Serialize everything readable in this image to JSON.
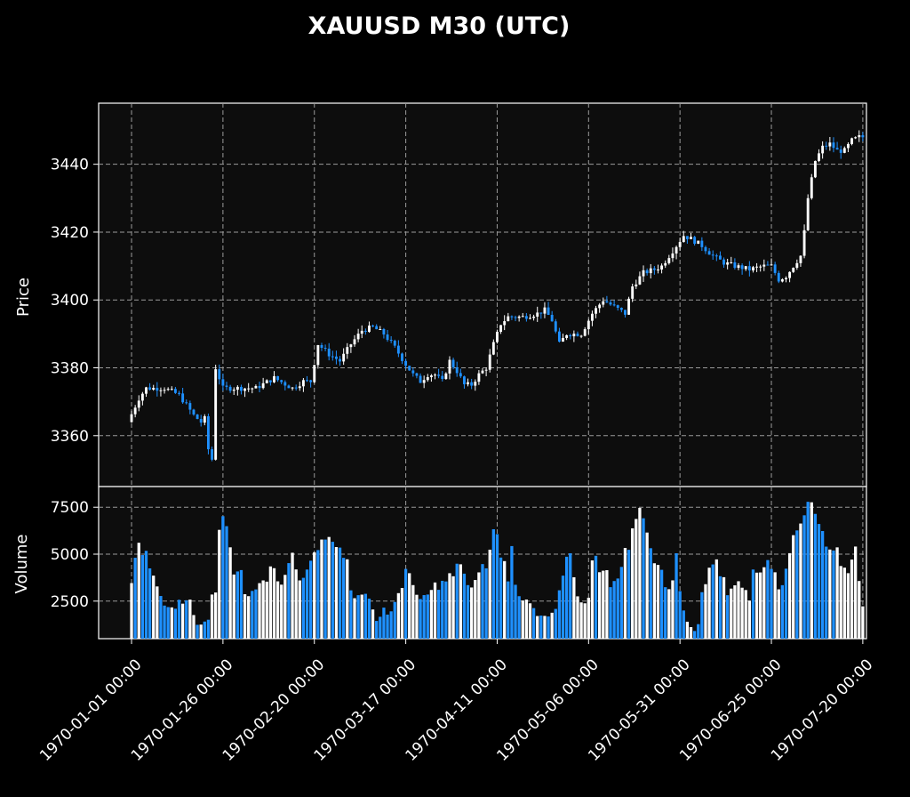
{
  "chart_data": {
    "type": "candlestick",
    "title": "XAUUSD M30 (UTC)",
    "colors": {
      "background": "#000000",
      "panel": "#0d0d0d",
      "up": "#ffffff",
      "down": "#1e90ff",
      "grid": "#9a9a9a",
      "text": "#ffffff"
    },
    "grid": true,
    "price_panel": {
      "ylabel": "Price",
      "ylim": [
        3345,
        3458
      ],
      "yticks": [
        3360,
        3380,
        3400,
        3420,
        3440
      ],
      "ytick_labels": [
        "3360",
        "3380",
        "3400",
        "3420",
        "3440"
      ]
    },
    "volume_panel": {
      "ylabel": "Volume",
      "ylim": [
        500,
        8600
      ],
      "yticks": [
        2500,
        5000,
        7500
      ],
      "ytick_labels": [
        "2500",
        "5000",
        "7500"
      ]
    },
    "x": {
      "index_range": [
        -9,
        201
      ],
      "ticks": [
        0,
        25,
        50,
        75,
        100,
        125,
        150,
        175,
        200
      ],
      "tick_labels": [
        "1970-01-01 00:00",
        "1970-01-26 00:00",
        "1970-02-20 00:00",
        "1970-03-17 00:00",
        "1970-04-11 00:00",
        "1970-05-06 00:00",
        "1970-05-31 00:00",
        "1970-06-25 00:00",
        "1970-07-20 00:00"
      ]
    },
    "price_anchors": [
      [
        0,
        3364
      ],
      [
        3,
        3371
      ],
      [
        5,
        3374
      ],
      [
        10,
        3374
      ],
      [
        14,
        3372
      ],
      [
        18,
        3366
      ],
      [
        21,
        3365
      ],
      [
        18,
        3366
      ],
      [
        19,
        3365
      ],
      [
        20,
        3364
      ],
      [
        21,
        3363
      ],
      [
        22,
        3356
      ],
      [
        23,
        3353
      ],
      [
        24,
        3380
      ],
      [
        26,
        3374
      ],
      [
        30,
        3374
      ],
      [
        35,
        3374
      ],
      [
        40,
        3377
      ],
      [
        45,
        3374
      ],
      [
        48,
        3376
      ],
      [
        50,
        3376
      ],
      [
        52,
        3387
      ],
      [
        55,
        3384
      ],
      [
        58,
        3382
      ],
      [
        61,
        3387
      ],
      [
        64,
        3391
      ],
      [
        67,
        3392
      ],
      [
        70,
        3390
      ],
      [
        73,
        3386
      ],
      [
        76,
        3381
      ],
      [
        78,
        3378
      ],
      [
        80,
        3376
      ],
      [
        82,
        3378
      ],
      [
        84,
        3378
      ],
      [
        86,
        3376
      ],
      [
        88,
        3382
      ],
      [
        90,
        3379
      ],
      [
        92,
        3375
      ],
      [
        94,
        3375
      ],
      [
        96,
        3378
      ],
      [
        98,
        3380
      ],
      [
        100,
        3387
      ],
      [
        102,
        3393
      ],
      [
        104,
        3395
      ],
      [
        108,
        3395
      ],
      [
        112,
        3396
      ],
      [
        114,
        3397
      ],
      [
        116,
        3394
      ],
      [
        118,
        3387
      ],
      [
        120,
        3390
      ],
      [
        124,
        3390
      ],
      [
        127,
        3396
      ],
      [
        130,
        3400
      ],
      [
        133,
        3398
      ],
      [
        136,
        3396
      ],
      [
        138,
        3404
      ],
      [
        141,
        3408
      ],
      [
        144,
        3409
      ],
      [
        146,
        3410
      ],
      [
        150,
        3416
      ],
      [
        152,
        3419
      ],
      [
        154,
        3418
      ],
      [
        157,
        3416
      ],
      [
        160,
        3413
      ],
      [
        163,
        3411
      ],
      [
        166,
        3410
      ],
      [
        170,
        3409
      ],
      [
        174,
        3410
      ],
      [
        176,
        3410
      ],
      [
        178,
        3406
      ],
      [
        180,
        3407
      ],
      [
        182,
        3410
      ],
      [
        184,
        3413
      ],
      [
        185,
        3420
      ],
      [
        186,
        3430
      ],
      [
        188,
        3441
      ],
      [
        190,
        3445
      ],
      [
        192,
        3446
      ],
      [
        194,
        3444
      ],
      [
        196,
        3444
      ],
      [
        198,
        3447
      ],
      [
        200,
        3448
      ]
    ],
    "volume_anchors": [
      [
        0,
        3700
      ],
      [
        1,
        5300
      ],
      [
        3,
        5400
      ],
      [
        4,
        4700
      ],
      [
        5,
        3700
      ],
      [
        6,
        3300
      ],
      [
        7,
        2800
      ],
      [
        8,
        2300
      ],
      [
        9,
        2300
      ],
      [
        10,
        2200
      ],
      [
        11,
        2400
      ],
      [
        13,
        2400
      ],
      [
        14,
        2800
      ],
      [
        15,
        1500
      ],
      [
        16,
        1200
      ],
      [
        17,
        1500
      ],
      [
        18,
        1100
      ],
      [
        19,
        3000
      ],
      [
        20,
        3000
      ],
      [
        21,
        7000
      ],
      [
        22,
        6700
      ],
      [
        23,
        5800
      ],
      [
        24,
        3600
      ],
      [
        25,
        3800
      ],
      [
        26,
        4000
      ],
      [
        27,
        2700
      ],
      [
        29,
        3100
      ],
      [
        30,
        3600
      ],
      [
        32,
        3400
      ],
      [
        33,
        4800
      ],
      [
        35,
        3300
      ],
      [
        37,
        4400
      ],
      [
        38,
        4900
      ],
      [
        40,
        3500
      ],
      [
        42,
        4700
      ],
      [
        44,
        4800
      ],
      [
        46,
        6200
      ],
      [
        47,
        6500
      ],
      [
        49,
        5200
      ],
      [
        50,
        5000
      ],
      [
        51,
        4700
      ],
      [
        52,
        2900
      ],
      [
        54,
        2800
      ],
      [
        56,
        2900
      ],
      [
        58,
        1500
      ],
      [
        60,
        2100
      ],
      [
        61,
        1700
      ],
      [
        63,
        2600
      ],
      [
        65,
        4200
      ],
      [
        67,
        3000
      ],
      [
        69,
        2600
      ],
      [
        71,
        3200
      ],
      [
        73,
        3400
      ],
      [
        74,
        3700
      ],
      [
        76,
        4000
      ],
      [
        78,
        4400
      ],
      [
        80,
        3000
      ],
      [
        81,
        3800
      ],
      [
        83,
        4200
      ],
      [
        85,
        5000
      ],
      [
        86,
        6600
      ],
      [
        87,
        5000
      ],
      [
        88,
        5100
      ],
      [
        89,
        3300
      ],
      [
        90,
        5300
      ],
      [
        91,
        3300
      ],
      [
        92,
        2300
      ],
      [
        93,
        2500
      ],
      [
        95,
        2100
      ],
      [
        96,
        1700
      ],
      [
        97,
        1900
      ],
      [
        98,
        1500
      ],
      [
        99,
        2000
      ],
      [
        100,
        1700
      ],
      [
        101,
        2700
      ],
      [
        102,
        3500
      ],
      [
        103,
        5200
      ],
      [
        104,
        5000
      ],
      [
        105,
        3300
      ],
      [
        106,
        2700
      ],
      [
        107,
        2500
      ],
      [
        108,
        2500
      ],
      [
        109,
        4400
      ],
      [
        110,
        4700
      ],
      [
        111,
        3700
      ],
      [
        112,
        4500
      ],
      [
        113,
        3600
      ],
      [
        114,
        3300
      ],
      [
        115,
        3500
      ],
      [
        116,
        4800
      ],
      [
        117,
        5200
      ],
      [
        118,
        5000
      ],
      [
        119,
        7000
      ],
      [
        120,
        7400
      ],
      [
        121,
        6500
      ],
      [
        122,
        5900
      ],
      [
        123,
        5500
      ],
      [
        124,
        4000
      ],
      [
        125,
        4700
      ],
      [
        126,
        3500
      ],
      [
        127,
        3400
      ],
      [
        128,
        3400
      ],
      [
        129,
        5000
      ],
      [
        130,
        2400
      ],
      [
        131,
        1700
      ],
      [
        132,
        1300
      ],
      [
        133,
        900
      ],
      [
        134,
        1200
      ],
      [
        135,
        3000
      ],
      [
        136,
        3300
      ],
      [
        137,
        4700
      ],
      [
        138,
        4800
      ],
      [
        139,
        3900
      ],
      [
        140,
        3700
      ],
      [
        141,
        2700
      ],
      [
        142,
        3400
      ],
      [
        143,
        3500
      ],
      [
        145,
        3300
      ],
      [
        146,
        2400
      ],
      [
        147,
        4000
      ],
      [
        148,
        4100
      ],
      [
        149,
        4200
      ],
      [
        150,
        4700
      ],
      [
        151,
        4300
      ],
      [
        152,
        4000
      ],
      [
        153,
        3300
      ],
      [
        154,
        3500
      ],
      [
        155,
        4800
      ],
      [
        156,
        4800
      ],
      [
        157,
        6600
      ],
      [
        158,
        6900
      ],
      [
        159,
        7200
      ],
      [
        160,
        8000
      ],
      [
        161,
        7700
      ],
      [
        162,
        7300
      ],
      [
        163,
        6800
      ],
      [
        164,
        6300
      ],
      [
        165,
        4900
      ],
      [
        166,
        5200
      ],
      [
        167,
        5000
      ],
      [
        168,
        4000
      ],
      [
        169,
        4100
      ],
      [
        170,
        4200
      ],
      [
        171,
        6000
      ],
      [
        172,
        3900
      ],
      [
        173,
        2200
      ]
    ],
    "volume_index_offset": 27,
    "bar_count": 201,
    "seed": 7
  }
}
